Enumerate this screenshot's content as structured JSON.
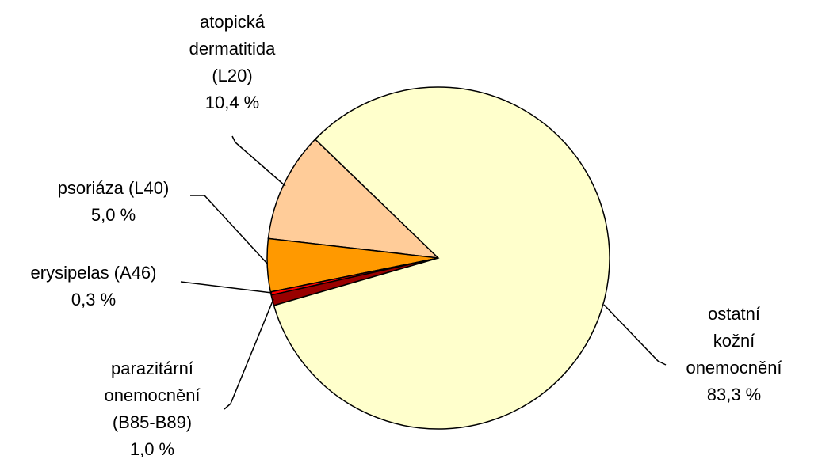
{
  "chart_data": {
    "type": "pie",
    "categories": [
      "ostatní  kožní\nonemocnění",
      "parazitární\nonemocnění\n(B85-B89)",
      "erysipelas (A46)",
      "psoriáza (L40)",
      "atopická\ndermatitida\n(L20)"
    ],
    "values": [
      83.3,
      1.0,
      0.3,
      5.0,
      10.4
    ],
    "value_labels": [
      "83,3 %",
      "1,0 %",
      "0,3 %",
      "5,0 %",
      "10,4 %"
    ],
    "colors": [
      "#FFFFCC",
      "#990000",
      "#FF0000",
      "#FF9900",
      "#FFCC99"
    ]
  }
}
